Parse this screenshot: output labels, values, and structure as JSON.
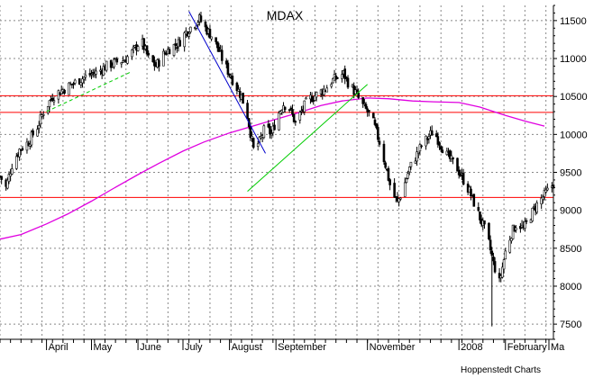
{
  "chart_data": {
    "type": "candlestick",
    "title": "MDAX",
    "credit": "Hoppenstedt Charts",
    "ylim": [
      7300,
      11700
    ],
    "y_ticks": [
      7500,
      8000,
      8500,
      9000,
      9500,
      10000,
      10500,
      11000,
      11500
    ],
    "x_range": [
      "2007-03-01",
      "2008-03-04"
    ],
    "month_labels": [
      {
        "label": "April",
        "date": "2007-04-01"
      },
      {
        "label": "May",
        "date": "2007-05-01"
      },
      {
        "label": "June",
        "date": "2007-06-01"
      },
      {
        "label": "July",
        "date": "2007-07-01"
      },
      {
        "label": "August",
        "date": "2007-08-01"
      },
      {
        "label": "September",
        "date": "2007-09-01"
      },
      {
        "label": "November",
        "date": "2007-11-01"
      },
      {
        "label": "2008",
        "date": "2008-01-01"
      },
      {
        "label": "February",
        "date": "2008-02-01"
      },
      {
        "label": "Ma",
        "date": "2008-03-01"
      }
    ],
    "price_path": [
      [
        "2007-03-01",
        9450
      ],
      [
        "2007-03-05",
        9300
      ],
      [
        "2007-03-09",
        9600
      ],
      [
        "2007-03-14",
        9800
      ],
      [
        "2007-03-20",
        9900
      ],
      [
        "2007-03-26",
        10100
      ],
      [
        "2007-03-30",
        10300
      ],
      [
        "2007-04-05",
        10500
      ],
      [
        "2007-04-11",
        10580
      ],
      [
        "2007-04-17",
        10650
      ],
      [
        "2007-04-23",
        10720
      ],
      [
        "2007-04-29",
        10780
      ],
      [
        "2007-05-05",
        10820
      ],
      [
        "2007-05-11",
        10900
      ],
      [
        "2007-05-17",
        10950
      ],
      [
        "2007-05-23",
        10980
      ],
      [
        "2007-05-29",
        11100
      ],
      [
        "2007-06-03",
        11250
      ],
      [
        "2007-06-08",
        11000
      ],
      [
        "2007-06-13",
        10900
      ],
      [
        "2007-06-18",
        11050
      ],
      [
        "2007-06-23",
        11150
      ],
      [
        "2007-06-28",
        11200
      ],
      [
        "2007-07-03",
        11350
      ],
      [
        "2007-07-08",
        11450
      ],
      [
        "2007-07-12",
        11520
      ],
      [
        "2007-07-16",
        11400
      ],
      [
        "2007-07-20",
        11300
      ],
      [
        "2007-07-24",
        11150
      ],
      [
        "2007-07-28",
        10950
      ],
      [
        "2007-08-01",
        10800
      ],
      [
        "2007-08-05",
        10650
      ],
      [
        "2007-08-09",
        10500
      ],
      [
        "2007-08-13",
        10250
      ],
      [
        "2007-08-17",
        9800
      ],
      [
        "2007-08-21",
        9900
      ],
      [
        "2007-08-25",
        10100
      ],
      [
        "2007-08-29",
        10000
      ],
      [
        "2007-09-02",
        10250
      ],
      [
        "2007-09-06",
        10400
      ],
      [
        "2007-09-10",
        10350
      ],
      [
        "2007-09-14",
        10150
      ],
      [
        "2007-09-18",
        10300
      ],
      [
        "2007-09-22",
        10450
      ],
      [
        "2007-09-26",
        10500
      ],
      [
        "2007-09-30",
        10550
      ],
      [
        "2007-10-04",
        10600
      ],
      [
        "2007-10-08",
        10700
      ],
      [
        "2007-10-12",
        10750
      ],
      [
        "2007-10-16",
        10800
      ],
      [
        "2007-10-20",
        10650
      ],
      [
        "2007-10-24",
        10550
      ],
      [
        "2007-10-28",
        10400
      ],
      [
        "2007-11-01",
        10300
      ],
      [
        "2007-11-05",
        10150
      ],
      [
        "2007-11-09",
        9900
      ],
      [
        "2007-11-13",
        9600
      ],
      [
        "2007-11-17",
        9250
      ],
      [
        "2007-11-21",
        9100
      ],
      [
        "2007-11-25",
        9300
      ],
      [
        "2007-11-29",
        9550
      ],
      [
        "2007-12-03",
        9700
      ],
      [
        "2007-12-07",
        9850
      ],
      [
        "2007-12-11",
        9950
      ],
      [
        "2007-12-15",
        10050
      ],
      [
        "2007-12-19",
        9900
      ],
      [
        "2007-12-23",
        9750
      ],
      [
        "2007-12-27",
        9650
      ],
      [
        "2007-12-31",
        9550
      ],
      [
        "2008-01-04",
        9400
      ],
      [
        "2008-01-08",
        9250
      ],
      [
        "2008-01-12",
        9050
      ],
      [
        "2008-01-16",
        8850
      ],
      [
        "2008-01-20",
        8650
      ],
      [
        "2008-01-24",
        8300
      ],
      [
        "2008-01-28",
        8050
      ],
      [
        "2008-02-01",
        8450
      ],
      [
        "2008-02-05",
        8700
      ],
      [
        "2008-02-09",
        8850
      ],
      [
        "2008-02-13",
        8750
      ],
      [
        "2008-02-17",
        8900
      ],
      [
        "2008-02-21",
        9050
      ],
      [
        "2008-02-25",
        9150
      ],
      [
        "2008-02-29",
        9250
      ],
      [
        "2008-03-04",
        9350
      ]
    ],
    "low_spike": {
      "date": "2008-01-23",
      "low": 7470
    },
    "moving_average": [
      [
        "2007-03-01",
        8620
      ],
      [
        "2007-03-15",
        8680
      ],
      [
        "2007-04-01",
        8820
      ],
      [
        "2007-04-15",
        8950
      ],
      [
        "2007-05-01",
        9120
      ],
      [
        "2007-05-15",
        9280
      ],
      [
        "2007-06-01",
        9470
      ],
      [
        "2007-06-15",
        9620
      ],
      [
        "2007-07-01",
        9780
      ],
      [
        "2007-07-15",
        9900
      ],
      [
        "2007-08-01",
        10020
      ],
      [
        "2007-08-15",
        10100
      ],
      [
        "2007-09-01",
        10200
      ],
      [
        "2007-09-15",
        10280
      ],
      [
        "2007-10-01",
        10380
      ],
      [
        "2007-10-15",
        10440
      ],
      [
        "2007-11-01",
        10480
      ],
      [
        "2007-11-15",
        10470
      ],
      [
        "2007-12-01",
        10440
      ],
      [
        "2007-12-15",
        10430
      ],
      [
        "2008-01-01",
        10420
      ],
      [
        "2008-01-15",
        10360
      ],
      [
        "2008-02-01",
        10250
      ],
      [
        "2008-02-15",
        10170
      ],
      [
        "2008-02-27",
        10110
      ]
    ],
    "horizontal_lines": [
      {
        "y": 10510,
        "color": "#ff0000"
      },
      {
        "y": 10290,
        "color": "#ff0000"
      },
      {
        "y": 9170,
        "color": "#ff0000"
      }
    ],
    "trend_lines": [
      {
        "from": [
          "2007-04-01",
          10300
        ],
        "to": [
          "2007-05-28",
          10830
        ],
        "color": "#00cc00",
        "dashed": true
      },
      {
        "from": [
          "2007-07-05",
          11620
        ],
        "to": [
          "2007-08-25",
          9750
        ],
        "color": "#0000cc",
        "dashed": false
      },
      {
        "from": [
          "2007-08-13",
          9250
        ],
        "to": [
          "2007-11-01",
          10660
        ],
        "color": "#00cc00",
        "dashed": false
      }
    ],
    "colors": {
      "candles": "#000000",
      "moving_average": "#e000e0",
      "grid": "#888888",
      "support_resistance": "#ff0000",
      "uptrend": "#00cc00",
      "downtrend": "#0000cc"
    },
    "grid": true,
    "y_axis_side": "right"
  }
}
